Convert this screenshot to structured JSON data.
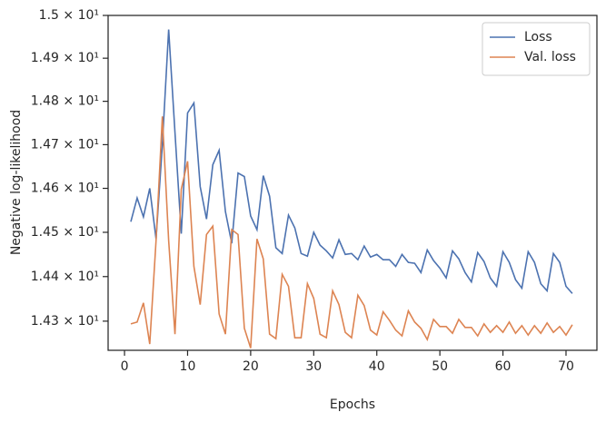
{
  "chart_data": {
    "type": "line",
    "xlabel": "Epochs",
    "ylabel": "Negative log-likelihood",
    "x": [
      1,
      2,
      3,
      4,
      5,
      6,
      7,
      8,
      9,
      10,
      11,
      12,
      13,
      14,
      15,
      16,
      17,
      18,
      19,
      20,
      21,
      22,
      23,
      24,
      25,
      26,
      27,
      28,
      29,
      30,
      31,
      32,
      33,
      34,
      35,
      36,
      37,
      38,
      39,
      40,
      41,
      42,
      43,
      44,
      45,
      46,
      47,
      48,
      49,
      50,
      51,
      52,
      53,
      54,
      55,
      56,
      57,
      58,
      59,
      60,
      61,
      62,
      63,
      64,
      65,
      66,
      67,
      68,
      69,
      70,
      71
    ],
    "series": [
      {
        "name": "Loss",
        "color": "#4c72b0",
        "values": [
          14.524,
          14.578,
          14.535,
          14.6,
          14.485,
          14.7,
          14.967,
          14.728,
          14.497,
          14.773,
          14.796,
          14.604,
          14.53,
          14.654,
          14.687,
          14.547,
          14.475,
          14.635,
          14.627,
          14.537,
          14.506,
          14.629,
          14.582,
          14.465,
          14.452,
          14.539,
          14.51,
          14.452,
          14.446,
          14.5,
          14.471,
          14.458,
          14.442,
          14.483,
          14.45,
          14.452,
          14.438,
          14.469,
          14.444,
          14.45,
          14.438,
          14.438,
          14.423,
          14.45,
          14.432,
          14.43,
          14.409,
          14.46,
          14.436,
          14.419,
          14.397,
          14.458,
          14.44,
          14.409,
          14.388,
          14.454,
          14.434,
          14.397,
          14.378,
          14.456,
          14.432,
          14.393,
          14.374,
          14.456,
          14.432,
          14.384,
          14.368,
          14.452,
          14.432,
          14.378,
          14.362
        ]
      },
      {
        "name": "Val. loss",
        "color": "#dd8452",
        "values": [
          14.294,
          14.298,
          14.341,
          14.249,
          14.481,
          14.765,
          14.481,
          14.271,
          14.598,
          14.662,
          14.423,
          14.337,
          14.495,
          14.514,
          14.316,
          14.271,
          14.506,
          14.495,
          14.284,
          14.24,
          14.485,
          14.44,
          14.271,
          14.261,
          14.405,
          14.378,
          14.263,
          14.263,
          14.384,
          14.351,
          14.271,
          14.263,
          14.368,
          14.337,
          14.275,
          14.263,
          14.358,
          14.335,
          14.28,
          14.269,
          14.321,
          14.302,
          14.28,
          14.267,
          14.323,
          14.298,
          14.284,
          14.259,
          14.304,
          14.288,
          14.288,
          14.273,
          14.304,
          14.286,
          14.286,
          14.267,
          14.294,
          14.275,
          14.29,
          14.275,
          14.298,
          14.273,
          14.29,
          14.269,
          14.29,
          14.273,
          14.296,
          14.275,
          14.288,
          14.269,
          14.292
        ]
      }
    ],
    "xlim": [
      -2.6,
      74.9
    ],
    "xticks": [
      0,
      10,
      20,
      30,
      40,
      50,
      60,
      70
    ],
    "ylim": [
      14.235,
      15.0
    ],
    "yscale": "log",
    "yticks": [
      {
        "value": 14.3,
        "label": "1.43 × 10¹"
      },
      {
        "value": 14.4,
        "label": "1.44 × 10¹"
      },
      {
        "value": 14.5,
        "label": "1.45 × 10¹"
      },
      {
        "value": 14.6,
        "label": "1.46 × 10¹"
      },
      {
        "value": 14.7,
        "label": "1.47 × 10¹"
      },
      {
        "value": 14.8,
        "label": "1.48 × 10¹"
      },
      {
        "value": 14.9,
        "label": "1.49 × 10¹"
      },
      {
        "value": 15.0,
        "label": "1.5 × 10¹"
      }
    ],
    "grid": false,
    "legend": "upper right"
  }
}
